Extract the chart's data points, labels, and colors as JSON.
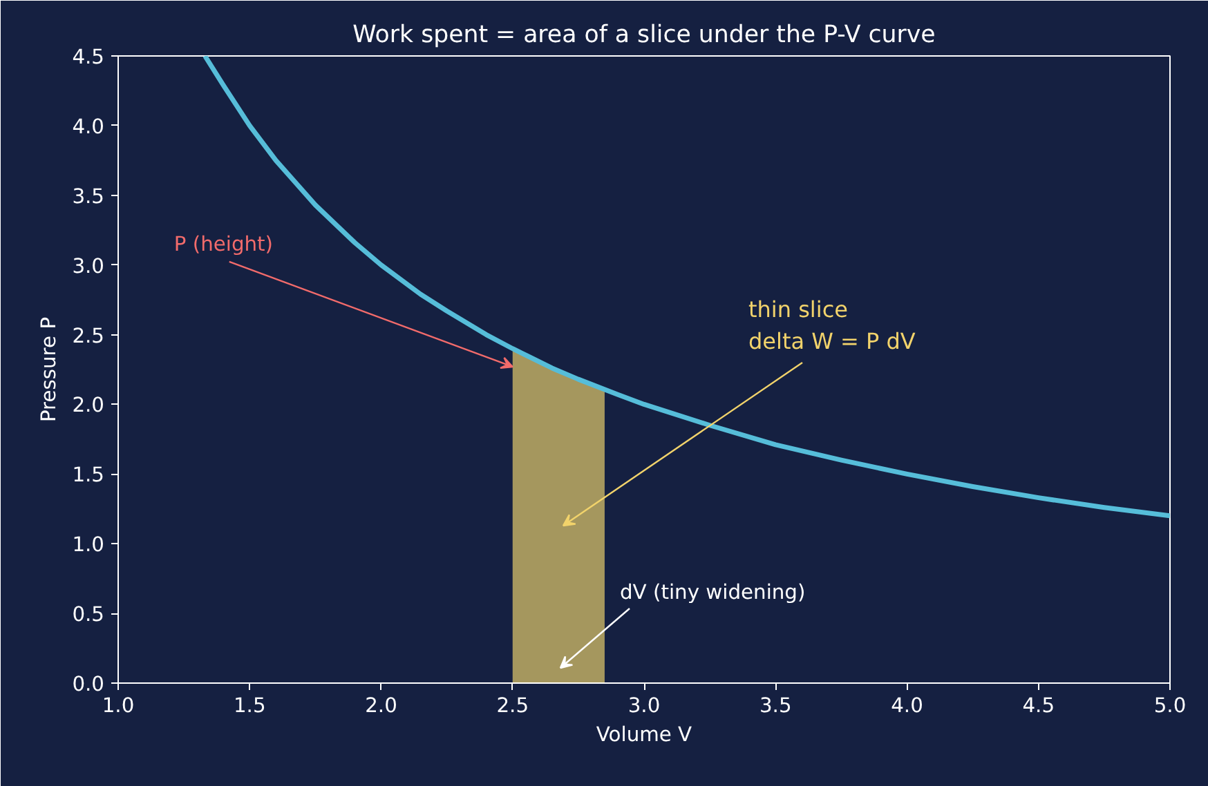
{
  "chart_data": {
    "type": "line",
    "title": "Work spent = area of a slice under the P-V curve",
    "xlabel": "Volume V",
    "ylabel": "Pressure P",
    "series": [
      {
        "type": "area",
        "color": "#b5a462",
        "x": [
          2.5,
          2.85
        ],
        "values": [
          2.4,
          2.1
        ]
      },
      {
        "type": "line",
        "color": "#56bdd9",
        "x": [
          1.33,
          1.4,
          1.5,
          1.6,
          1.75,
          1.9,
          2.0,
          2.15,
          2.25,
          2.4,
          2.5,
          2.65,
          2.75,
          2.9,
          3.0,
          3.25,
          3.5,
          3.75,
          4.0,
          4.25,
          4.5,
          4.75,
          5.0
        ],
        "values": [
          4.5,
          4.29,
          4.0,
          3.75,
          3.43,
          3.16,
          3.0,
          2.79,
          2.67,
          2.5,
          2.4,
          2.26,
          2.18,
          2.07,
          2.0,
          1.85,
          1.71,
          1.6,
          1.5,
          1.41,
          1.33,
          1.26,
          1.2
        ]
      }
    ],
    "annotations": [
      {
        "text": "P (height)",
        "x": 2.5,
        "y": 2.27
      },
      "thin slice\ndelta W = P dV",
      "dV (tiny widening)"
    ],
    "xlim": [
      1.0,
      5.0
    ],
    "ylim": [
      0.0,
      4.5
    ],
    "xticks": [
      {
        "value": 1.0,
        "label": "1.0"
      },
      1.5,
      {
        "value": 2.0,
        "label": "2.0"
      },
      2.5,
      {
        "value": 3.0,
        "label": "3.0"
      },
      3.5,
      {
        "value": 4.0,
        "label": "4.0"
      },
      4.5,
      {
        "value": 5.0,
        "label": "5.0"
      }
    ],
    "yticks": [
      {
        "value": 0.0,
        "label": "0.0"
      },
      0.5,
      {
        "value": 1.0,
        "label": "1.0"
      },
      1.5,
      {
        "value": 2.0,
        "label": "2.0"
      },
      2.5,
      {
        "value": 3.0,
        "label": "3.0"
      },
      3.5,
      {
        "value": 4.0,
        "label": "4.0"
      },
      4.5
    ],
    "grid": false
  }
}
